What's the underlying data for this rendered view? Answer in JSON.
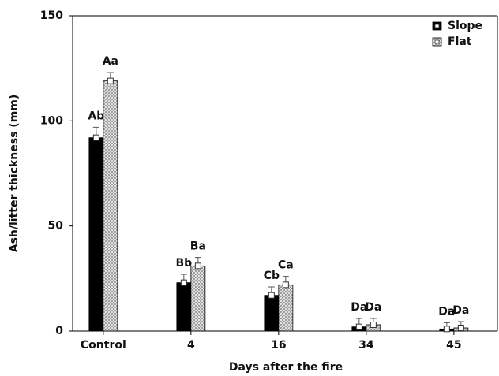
{
  "chart_data": {
    "type": "bar",
    "xlabel": "Days after the fire",
    "ylabel": "Ash/litter thickness (mm)",
    "categories": [
      "Control",
      "4",
      "16",
      "34",
      "45"
    ],
    "series": [
      {
        "name": "Slope",
        "color": "#000000",
        "pattern": "solid",
        "values": [
          92,
          23,
          17,
          2,
          1
        ],
        "errors": [
          5,
          4,
          4,
          4,
          3
        ],
        "letters": [
          "Ab",
          "Bb",
          "Cb",
          "Da",
          "Da"
        ]
      },
      {
        "name": "Flat",
        "color": "#9a9a9a",
        "pattern": "crosshatch",
        "values": [
          119,
          31,
          22,
          3,
          1.5
        ],
        "errors": [
          4,
          4,
          4,
          3,
          3
        ],
        "letters": [
          "Aa",
          "Ba",
          "Ca",
          "Da",
          "Da"
        ]
      }
    ],
    "ylim": [
      0,
      150
    ],
    "yticks": [
      0,
      50,
      100,
      150
    ],
    "legend": "upper right",
    "grid": false
  }
}
